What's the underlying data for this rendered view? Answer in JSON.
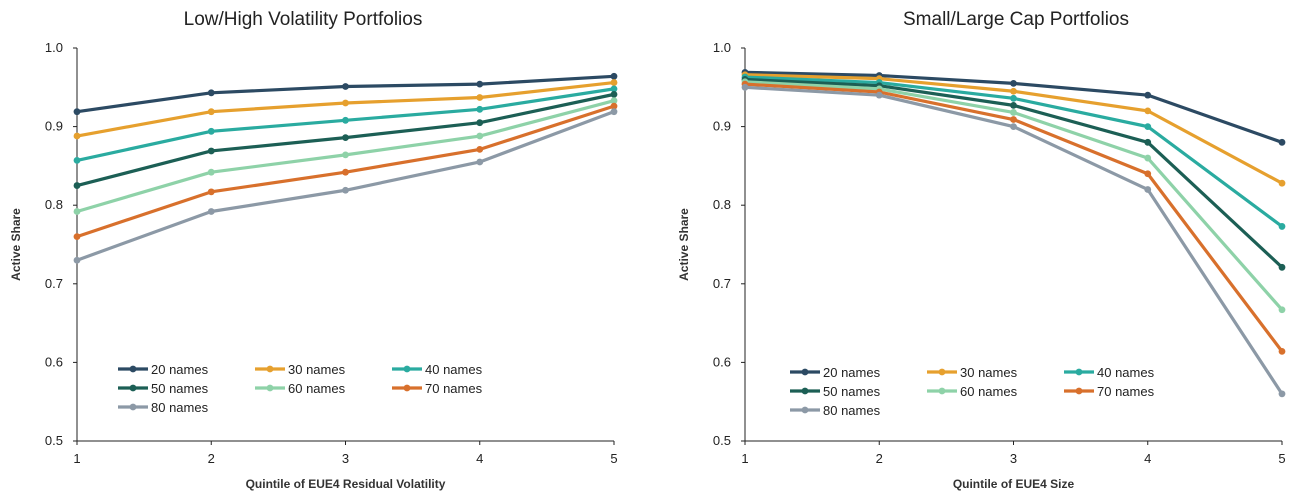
{
  "chart_data": [
    {
      "type": "line",
      "title": "Low/High Volatility Portfolios",
      "xlabel": "Quintile of EUE4  Residual Volatility",
      "ylabel": "Active Share",
      "x": [
        1,
        2,
        3,
        4,
        5
      ],
      "xlim": [
        1,
        5
      ],
      "ylim": [
        0.5,
        1.0
      ],
      "yticks": [
        "0.5",
        "0.6",
        "0.7",
        "0.8",
        "0.9",
        "1.0"
      ],
      "xticks": [
        "1",
        "2",
        "3",
        "4",
        "5"
      ],
      "grid": false,
      "legend_position": "bottom-left",
      "series": [
        {
          "name": "20 names",
          "color": "#2c4a63",
          "values": [
            0.919,
            0.943,
            0.951,
            0.954,
            0.964
          ]
        },
        {
          "name": "30 names",
          "color": "#e6a02e",
          "values": [
            0.888,
            0.919,
            0.93,
            0.937,
            0.956
          ]
        },
        {
          "name": "40 names",
          "color": "#2aaba0",
          "values": [
            0.857,
            0.894,
            0.908,
            0.922,
            0.948
          ]
        },
        {
          "name": "50 names",
          "color": "#1c5f55",
          "values": [
            0.825,
            0.869,
            0.886,
            0.905,
            0.941
          ]
        },
        {
          "name": "60 names",
          "color": "#8ed2a8",
          "values": [
            0.792,
            0.842,
            0.864,
            0.888,
            0.933
          ]
        },
        {
          "name": "70 names",
          "color": "#d8702c",
          "values": [
            0.76,
            0.817,
            0.842,
            0.871,
            0.926
          ]
        },
        {
          "name": "80 names",
          "color": "#8c99a6",
          "values": [
            0.73,
            0.792,
            0.819,
            0.855,
            0.919
          ]
        }
      ]
    },
    {
      "type": "line",
      "title": "Small/Large Cap Portfolios",
      "xlabel": "Quintile of EUE4 Size",
      "ylabel": "Active Share",
      "x": [
        1,
        2,
        3,
        4,
        5
      ],
      "xlim": [
        1,
        5
      ],
      "ylim": [
        0.5,
        1.0
      ],
      "yticks": [
        "0.5",
        "0.6",
        "0.7",
        "0.8",
        "0.9",
        "1.0"
      ],
      "xticks": [
        "1",
        "2",
        "3",
        "4",
        "5"
      ],
      "grid": false,
      "legend_position": "bottom-left",
      "series": [
        {
          "name": "20 names",
          "color": "#2c4a63",
          "values": [
            0.969,
            0.965,
            0.955,
            0.94,
            0.88
          ]
        },
        {
          "name": "30 names",
          "color": "#e6a02e",
          "values": [
            0.966,
            0.961,
            0.945,
            0.92,
            0.828
          ]
        },
        {
          "name": "40 names",
          "color": "#2aaba0",
          "values": [
            0.963,
            0.956,
            0.936,
            0.9,
            0.773
          ]
        },
        {
          "name": "50 names",
          "color": "#1c5f55",
          "values": [
            0.96,
            0.952,
            0.927,
            0.88,
            0.721
          ]
        },
        {
          "name": "60 names",
          "color": "#8ed2a8",
          "values": [
            0.957,
            0.948,
            0.918,
            0.86,
            0.667
          ]
        },
        {
          "name": "70 names",
          "color": "#d8702c",
          "values": [
            0.954,
            0.944,
            0.909,
            0.84,
            0.614
          ]
        },
        {
          "name": "80 names",
          "color": "#8c99a6",
          "values": [
            0.95,
            0.94,
            0.9,
            0.82,
            0.56
          ]
        }
      ]
    }
  ]
}
